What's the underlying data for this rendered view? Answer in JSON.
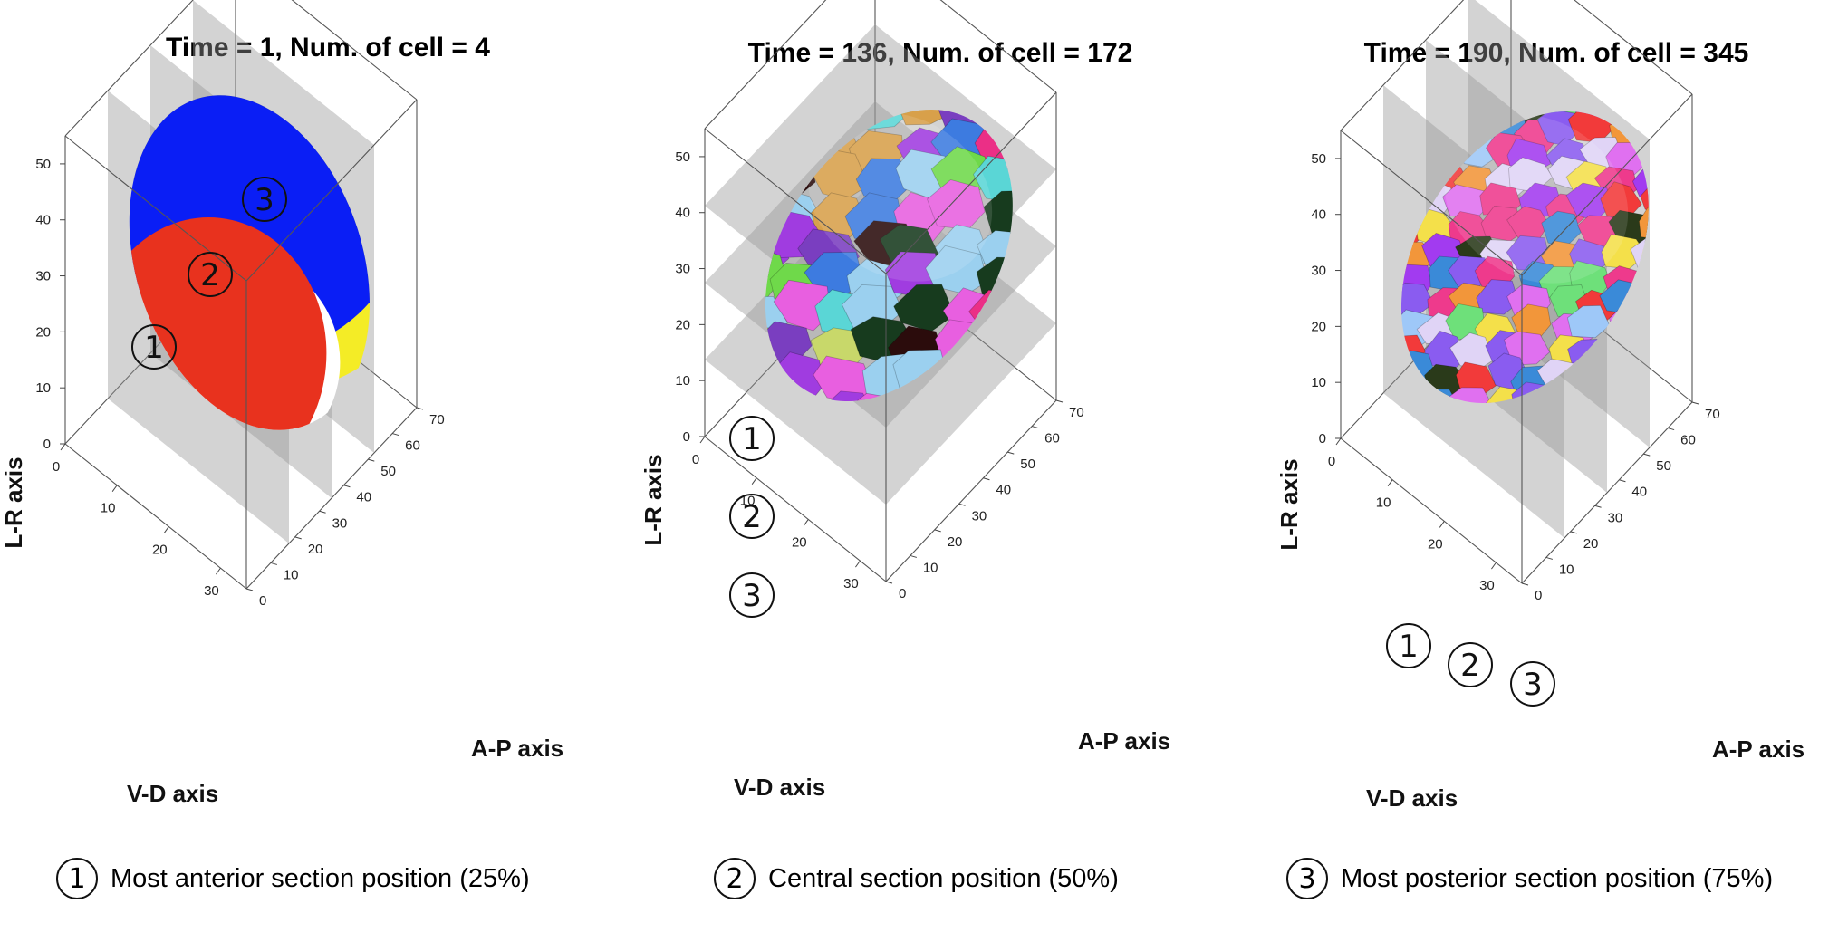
{
  "chart_data": [
    {
      "type": "3d-surface",
      "title": "Time = 1, Num. of cell = 4",
      "xlabel": "V-D axis",
      "ylabel": "A-P axis",
      "zlabel": "L-R axis",
      "x_ticks": [
        "0",
        "10",
        "20",
        "30"
      ],
      "y_ticks": [
        "0",
        "10",
        "20",
        "30",
        "40",
        "50",
        "60",
        "70"
      ],
      "z_ticks": [
        "0",
        "10",
        "20",
        "30",
        "40",
        "50"
      ],
      "xlim": [
        0,
        35
      ],
      "ylim": [
        0,
        70
      ],
      "zlim": [
        0,
        55
      ],
      "section_orientation": "vertical",
      "section_markers": [
        "1",
        "2",
        "3"
      ],
      "cell_colors": [
        "#e8321e",
        "#0a1ef5",
        "#f4ec26",
        "#ffffff"
      ]
    },
    {
      "type": "3d-surface",
      "title": "Time = 136, Num. of cell = 172",
      "xlabel": "V-D axis",
      "ylabel": "A-P axis",
      "zlabel": "L-R axis",
      "x_ticks": [
        "0",
        "10",
        "20",
        "30"
      ],
      "y_ticks": [
        "0",
        "10",
        "20",
        "30",
        "40",
        "50",
        "60",
        "70"
      ],
      "z_ticks": [
        "0",
        "10",
        "20",
        "30",
        "40",
        "50"
      ],
      "xlim": [
        0,
        35
      ],
      "ylim": [
        0,
        70
      ],
      "zlim": [
        0,
        55
      ],
      "section_orientation": "horizontal",
      "section_markers": [
        "1",
        "2",
        "3"
      ],
      "cell_colors": [
        "#6fd94a",
        "#3d7be0",
        "#e85fe0",
        "#173b1e",
        "#a03ce0",
        "#eb2f86",
        "#9bd0ef",
        "#c8d86a",
        "#2b0c0c",
        "#7a3ec0",
        "#5ad6d6",
        "#d8a04a"
      ]
    },
    {
      "type": "3d-surface",
      "title": "Time = 190, Num. of cell = 345",
      "xlabel": "V-D axis",
      "ylabel": "A-P axis",
      "zlabel": "L-R axis",
      "x_ticks": [
        "0",
        "10",
        "20",
        "30"
      ],
      "y_ticks": [
        "0",
        "10",
        "20",
        "30",
        "40",
        "50",
        "60",
        "70"
      ],
      "z_ticks": [
        "0",
        "10",
        "20",
        "30",
        "40",
        "50"
      ],
      "xlim": [
        0,
        35
      ],
      "ylim": [
        0,
        70
      ],
      "zlim": [
        0,
        55
      ],
      "section_orientation": "vertical",
      "section_markers": [
        "1",
        "2",
        "3"
      ],
      "cell_colors": [
        "#a23bf0",
        "#f2963a",
        "#e0d4f6",
        "#f4e04a",
        "#6ee07a",
        "#3a8ad8",
        "#ee3a8c",
        "#8a5cf0",
        "#2a3a1a",
        "#f23a3a",
        "#9ec8f8",
        "#e070f0"
      ]
    }
  ],
  "legend": [
    {
      "marker": "1",
      "text": "Most anterior section position (25%)"
    },
    {
      "marker": "2",
      "text": "Central section position (50%)"
    },
    {
      "marker": "3",
      "text": "Most posterior section position (75%)"
    }
  ]
}
